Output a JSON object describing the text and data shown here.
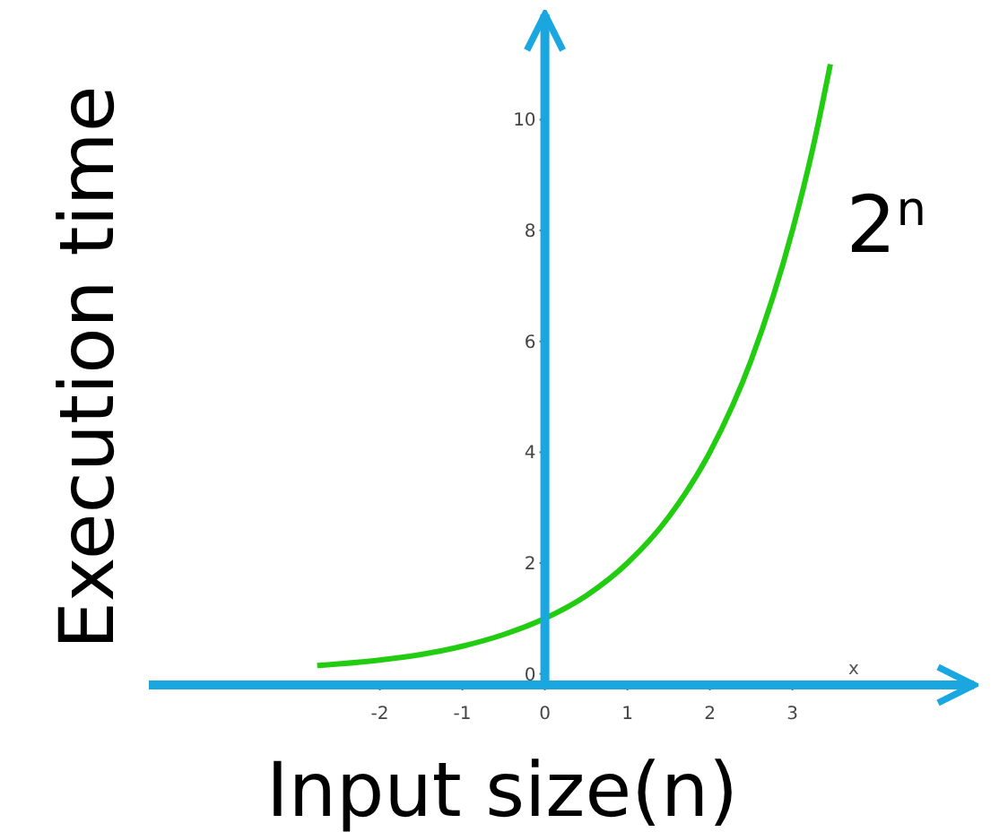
{
  "chart_data": {
    "type": "line",
    "xlabel": "Input size(n)",
    "ylabel": "Execution time",
    "xlim": [
      -4.8,
      5.2
    ],
    "ylim": [
      -0.2,
      11.9
    ],
    "xticks": [
      -2,
      -1,
      0,
      1,
      2,
      3
    ],
    "yticks": [
      0,
      2,
      4,
      6,
      8,
      10
    ],
    "series": [
      {
        "name": "2$^{n}$",
        "color": "#22cc11",
        "x": [
          -2.76,
          -2.5,
          -2,
          -1.5,
          -1,
          -0.5,
          0,
          0.5,
          1,
          1.5,
          2,
          2.5,
          3,
          3.25,
          3.46
        ],
        "values": [
          0.15,
          0.18,
          0.25,
          0.35,
          0.5,
          0.71,
          1,
          1.41,
          2,
          2.83,
          4,
          5.66,
          8,
          9.5,
          11.0
        ]
      }
    ],
    "annotations": [
      "x"
    ],
    "grid": false,
    "legend": false,
    "marker": "none",
    "line_style": "solid"
  }
}
